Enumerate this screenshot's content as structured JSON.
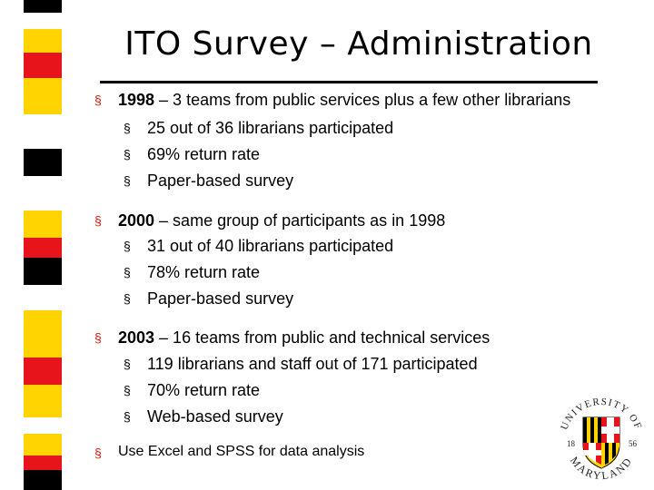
{
  "slide": {
    "title": "ITO Survey – Administration",
    "bullets": [
      {
        "year": "1998",
        "text": " – 3 teams from public services plus a few other librarians",
        "subs": [
          "25 out of 36 librarians participated",
          "69% return rate",
          "Paper-based survey"
        ]
      },
      {
        "year": "2000",
        "text": " – same group of participants as in 1998",
        "subs": [
          "31 out of 40 librarians participated",
          "78% return rate",
          "Paper-based survey"
        ]
      },
      {
        "year": "2003",
        "text": " – 16 teams from public and technical services",
        "subs": [
          "119 librarians and staff out of 171 participated",
          "70% return rate",
          "Web-based survey"
        ]
      }
    ],
    "final_bullet": "Use Excel and SPSS for data analysis",
    "bullet_glyph": "§"
  },
  "logo": {
    "top_text": "UNIVERSITY OF",
    "bottom_text": "MARYLAND",
    "year_left": "18",
    "year_right": "56"
  },
  "colors": {
    "yellow": "#ffd400",
    "red": "#e8141c",
    "black": "#000000",
    "bullet_red": "#e0140f"
  }
}
